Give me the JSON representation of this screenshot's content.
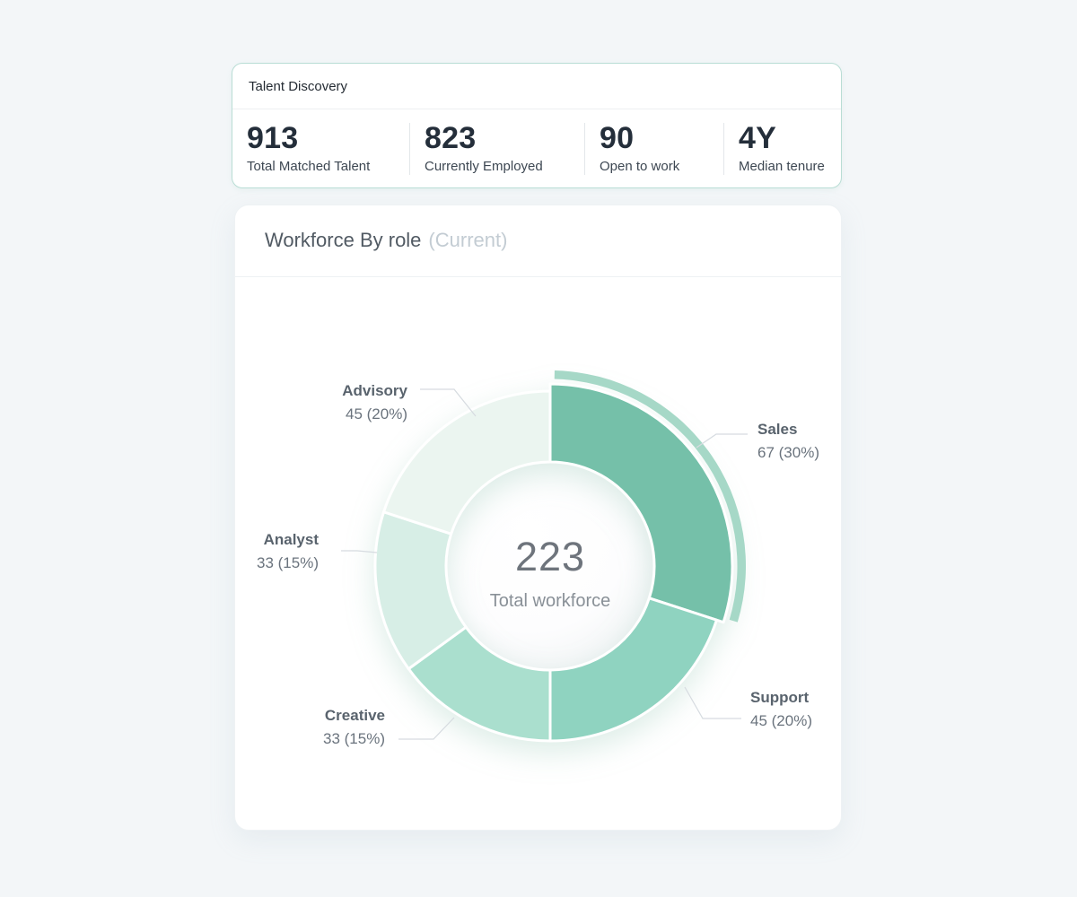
{
  "talent_card": {
    "title": "Talent Discovery",
    "stats": [
      {
        "value": "913",
        "label": "Total Matched Talent"
      },
      {
        "value": "823",
        "label": "Currently Employed"
      },
      {
        "value": "90",
        "label": "Open to work"
      },
      {
        "value": "4Y",
        "label": "Median tenure"
      }
    ]
  },
  "workforce_card": {
    "title": "Workforce By role",
    "subtitle": "(Current)"
  },
  "chart_data": {
    "type": "pie",
    "title": "Workforce By role (Current)",
    "total": 223,
    "total_label": "Total workforce",
    "direction": "clockwise",
    "start_angle_deg": 0,
    "inner_radius_ratio": 0.6,
    "halo_color": "#a6d8c7",
    "segments": [
      {
        "name": "Sales",
        "value": 67,
        "pct": 30,
        "label_text": "67 (30%)",
        "color": "#75c0a9",
        "selected": true
      },
      {
        "name": "Support",
        "value": 45,
        "pct": 20,
        "label_text": "45 (20%)",
        "color": "#8fd3c0",
        "selected": false
      },
      {
        "name": "Creative",
        "value": 33,
        "pct": 15,
        "label_text": "33 (15%)",
        "color": "#aadfce",
        "selected": false
      },
      {
        "name": "Analyst",
        "value": 33,
        "pct": 15,
        "label_text": "33 (15%)",
        "color": "#d7eee6",
        "selected": false
      },
      {
        "name": "Advisory",
        "value": 45,
        "pct": 20,
        "label_text": "45 (20%)",
        "color": "#ebf5f0",
        "selected": false
      }
    ]
  }
}
